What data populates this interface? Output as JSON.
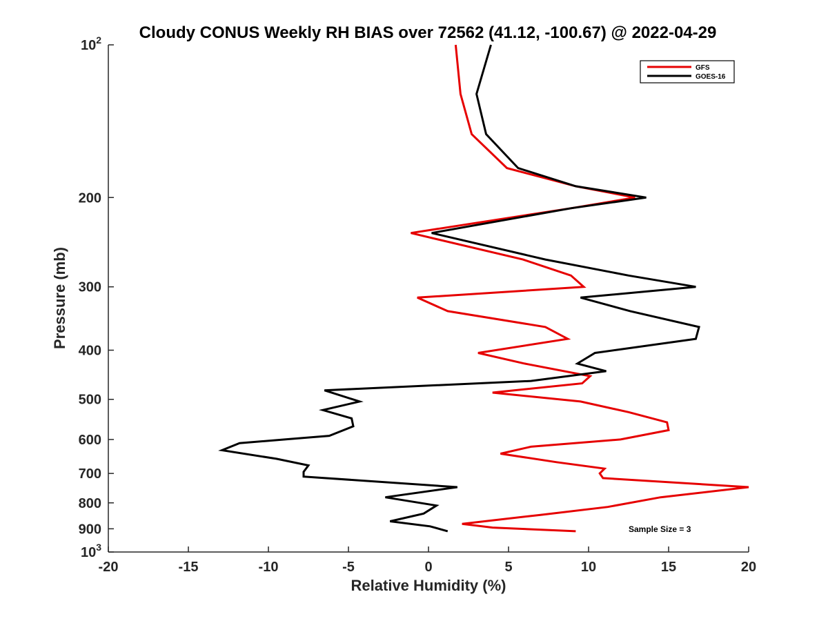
{
  "chart_data": {
    "type": "line",
    "title": "Cloudy CONUS Weekly RH BIAS over 72562 (41.12, -100.67) @ 2022-04-29",
    "xlabel": "Relative Humidity (%)",
    "ylabel": "Pressure (mb)",
    "xlim": [
      -20,
      20
    ],
    "ylim": [
      100,
      1000
    ],
    "y_scale": "log",
    "y_reversed": true,
    "x_ticks": [
      "-20",
      "-15",
      "-10",
      "-5",
      "0",
      "5",
      "10",
      "15",
      "20"
    ],
    "x_tick_values": [
      -20,
      -15,
      -10,
      -5,
      0,
      5,
      10,
      15,
      20
    ],
    "y_ticks": [
      {
        "value": 100,
        "base": "10",
        "exp": "2"
      },
      {
        "value": 200,
        "label": "200"
      },
      {
        "value": 300,
        "label": "300"
      },
      {
        "value": 400,
        "label": "400"
      },
      {
        "value": 500,
        "label": "500"
      },
      {
        "value": 600,
        "label": "600"
      },
      {
        "value": 700,
        "label": "700"
      },
      {
        "value": 800,
        "label": "800"
      },
      {
        "value": 900,
        "label": "900"
      },
      {
        "value": 1000,
        "base": "10",
        "exp": "3"
      }
    ],
    "grid": false,
    "legend": "top-right",
    "annotation": "Sample Size = 3",
    "series": [
      {
        "name": "GFS",
        "color": "#e60000",
        "points": [
          [
            1.7,
            100
          ],
          [
            2.0,
            125
          ],
          [
            2.7,
            150
          ],
          [
            4.9,
            175
          ],
          [
            9.2,
            190
          ],
          [
            12.9,
            200
          ],
          [
            8.9,
            210
          ],
          [
            -1.1,
            235
          ],
          [
            5.9,
            265
          ],
          [
            8.9,
            285
          ],
          [
            9.7,
            300
          ],
          [
            -0.7,
            315
          ],
          [
            1.2,
            335
          ],
          [
            7.3,
            360
          ],
          [
            8.7,
            380
          ],
          [
            3.1,
            405
          ],
          [
            6.0,
            425
          ],
          [
            10.1,
            450
          ],
          [
            9.6,
            465
          ],
          [
            4.0,
            485
          ],
          [
            9.5,
            505
          ],
          [
            12.5,
            530
          ],
          [
            14.9,
            555
          ],
          [
            15.0,
            575
          ],
          [
            12.0,
            600
          ],
          [
            6.4,
            620
          ],
          [
            4.5,
            640
          ],
          [
            8.0,
            665
          ],
          [
            11.0,
            685
          ],
          [
            10.7,
            700
          ],
          [
            10.9,
            715
          ],
          [
            20.0,
            745
          ],
          [
            14.5,
            780
          ],
          [
            11.2,
            815
          ],
          [
            7.0,
            845
          ],
          [
            2.1,
            880
          ],
          [
            4.0,
            895
          ],
          [
            9.2,
            910
          ]
        ]
      },
      {
        "name": "GOES-16",
        "color": "#000000",
        "points": [
          [
            3.9,
            100
          ],
          [
            3.0,
            125
          ],
          [
            3.6,
            150
          ],
          [
            5.6,
            175
          ],
          [
            9.2,
            190
          ],
          [
            13.6,
            200
          ],
          [
            8.9,
            210
          ],
          [
            0.2,
            235
          ],
          [
            7.3,
            265
          ],
          [
            12.5,
            285
          ],
          [
            16.7,
            300
          ],
          [
            9.5,
            315
          ],
          [
            12.6,
            335
          ],
          [
            16.9,
            360
          ],
          [
            16.7,
            380
          ],
          [
            10.4,
            405
          ],
          [
            9.3,
            425
          ],
          [
            11.1,
            440
          ],
          [
            6.4,
            460
          ],
          [
            -6.5,
            480
          ],
          [
            -4.3,
            505
          ],
          [
            -6.6,
            525
          ],
          [
            -4.8,
            545
          ],
          [
            -4.7,
            565
          ],
          [
            -6.2,
            590
          ],
          [
            -11.8,
            610
          ],
          [
            -12.9,
            630
          ],
          [
            -9.5,
            655
          ],
          [
            -7.5,
            675
          ],
          [
            -7.8,
            695
          ],
          [
            -7.8,
            710
          ],
          [
            1.8,
            745
          ],
          [
            -2.7,
            780
          ],
          [
            0.5,
            810
          ],
          [
            -0.3,
            840
          ],
          [
            -2.4,
            870
          ],
          [
            0.1,
            890
          ],
          [
            1.2,
            910
          ]
        ]
      }
    ]
  }
}
